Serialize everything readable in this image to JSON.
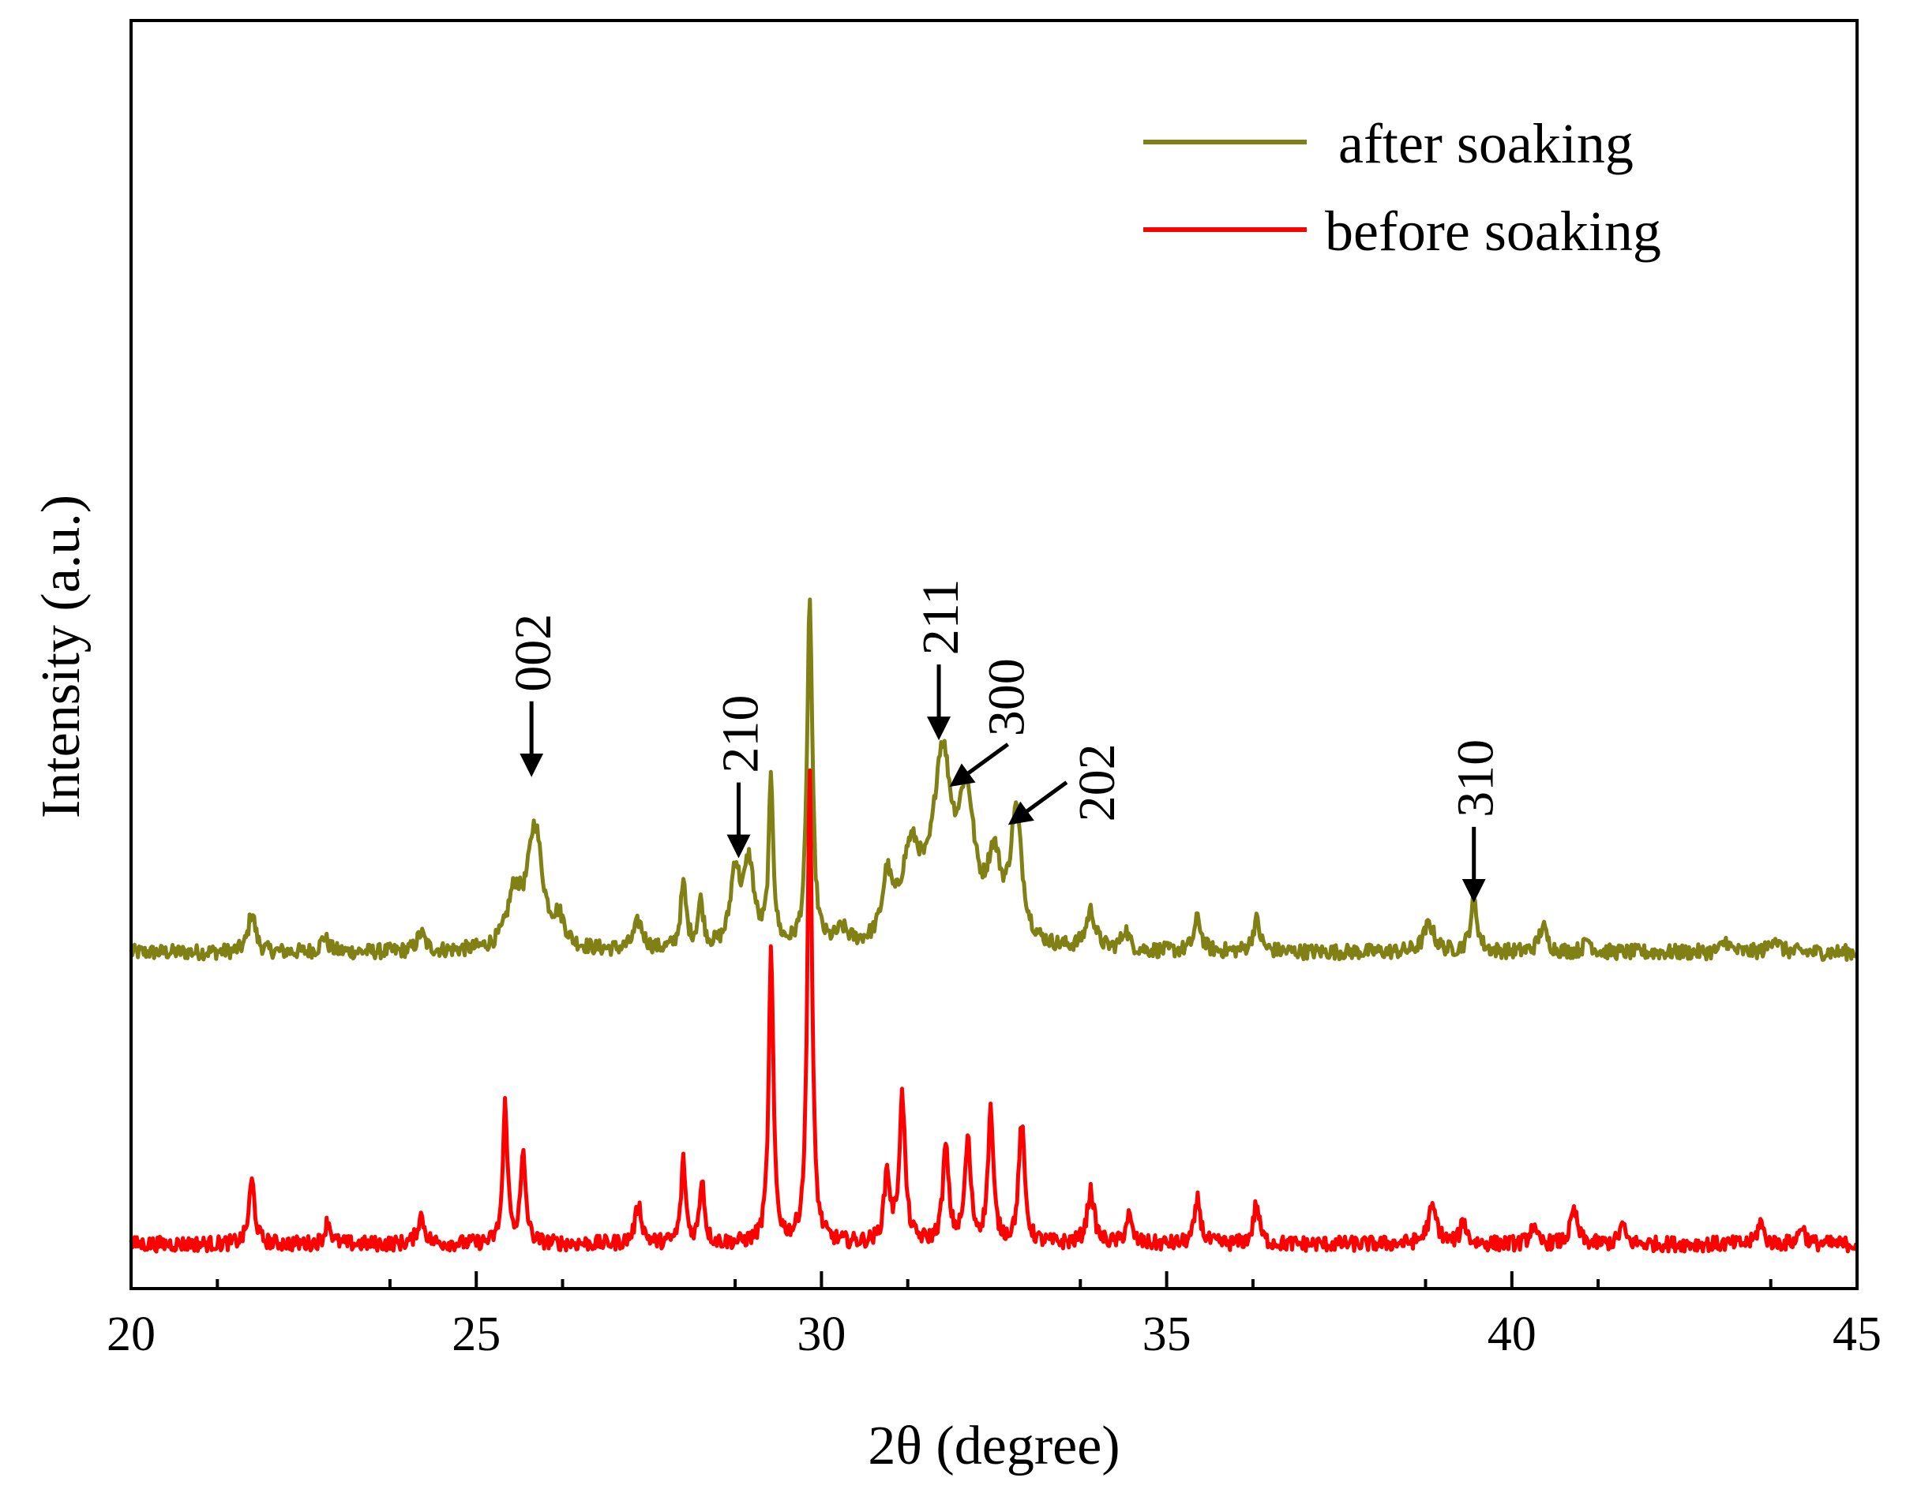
{
  "chart_data": {
    "type": "line",
    "title": "",
    "xlabel": "2θ (degree)",
    "ylabel": "Intensity (a.u.)",
    "xlim": [
      20,
      45
    ],
    "ylim": [
      0,
      100
    ],
    "xticks": [
      20,
      25,
      30,
      35,
      40,
      45
    ],
    "xtick_labels": [
      "20",
      "25",
      "30",
      "35",
      "40",
      "45"
    ],
    "minor_xtick_step": 1.25,
    "yticks_shown": false,
    "legend_position": "top-right",
    "colors": {
      "after": "#808015",
      "before": "#ff0000",
      "axis": "#000000"
    },
    "series": [
      {
        "name": "after soaking",
        "color": "#808015",
        "baseline": 26.5,
        "noise": 0.6,
        "peaks": [
          {
            "x": 21.75,
            "h": 3.2,
            "w": 0.06
          },
          {
            "x": 22.8,
            "h": 1.2,
            "w": 0.06
          },
          {
            "x": 24.2,
            "h": 1.4,
            "w": 0.07
          },
          {
            "x": 25.55,
            "h": 4.0,
            "w": 0.12
          },
          {
            "x": 25.85,
            "h": 9.5,
            "w": 0.13
          },
          {
            "x": 26.2,
            "h": 2.0,
            "w": 0.1
          },
          {
            "x": 27.35,
            "h": 2.2,
            "w": 0.08
          },
          {
            "x": 28.0,
            "h": 5.0,
            "w": 0.05
          },
          {
            "x": 28.25,
            "h": 3.6,
            "w": 0.05
          },
          {
            "x": 28.75,
            "h": 6.0,
            "w": 0.08
          },
          {
            "x": 28.95,
            "h": 6.5,
            "w": 0.09
          },
          {
            "x": 29.27,
            "h": 13.0,
            "w": 0.04
          },
          {
            "x": 29.83,
            "h": 27.5,
            "w": 0.045
          },
          {
            "x": 30.3,
            "h": 1.2,
            "w": 0.1
          },
          {
            "x": 30.95,
            "h": 4.5,
            "w": 0.08
          },
          {
            "x": 31.3,
            "h": 7.0,
            "w": 0.18
          },
          {
            "x": 31.75,
            "h": 14.0,
            "w": 0.16
          },
          {
            "x": 32.1,
            "h": 10.5,
            "w": 0.14
          },
          {
            "x": 32.5,
            "h": 6.0,
            "w": 0.12
          },
          {
            "x": 32.82,
            "h": 10.0,
            "w": 0.1
          },
          {
            "x": 33.9,
            "h": 3.0,
            "w": 0.08
          },
          {
            "x": 34.4,
            "h": 1.6,
            "w": 0.06
          },
          {
            "x": 35.45,
            "h": 2.6,
            "w": 0.06
          },
          {
            "x": 36.3,
            "h": 2.5,
            "w": 0.06
          },
          {
            "x": 38.8,
            "h": 2.2,
            "w": 0.09
          },
          {
            "x": 39.45,
            "h": 4.0,
            "w": 0.06
          },
          {
            "x": 40.45,
            "h": 2.0,
            "w": 0.07
          },
          {
            "x": 41.1,
            "h": 1.0,
            "w": 0.06
          },
          {
            "x": 43.1,
            "h": 0.9,
            "w": 0.06
          },
          {
            "x": 43.8,
            "h": 1.2,
            "w": 0.07
          }
        ]
      },
      {
        "name": "before soaking",
        "color": "#ff0000",
        "baseline": 3.5,
        "noise": 0.6,
        "peaks": [
          {
            "x": 21.75,
            "h": 5.0,
            "w": 0.05
          },
          {
            "x": 22.85,
            "h": 1.8,
            "w": 0.05
          },
          {
            "x": 24.2,
            "h": 2.2,
            "w": 0.06
          },
          {
            "x": 25.42,
            "h": 11.0,
            "w": 0.04
          },
          {
            "x": 25.68,
            "h": 6.8,
            "w": 0.045
          },
          {
            "x": 27.35,
            "h": 3.0,
            "w": 0.06
          },
          {
            "x": 28.0,
            "h": 6.5,
            "w": 0.04
          },
          {
            "x": 28.27,
            "h": 5.2,
            "w": 0.04
          },
          {
            "x": 29.27,
            "h": 23.0,
            "w": 0.04
          },
          {
            "x": 29.83,
            "h": 37.5,
            "w": 0.04
          },
          {
            "x": 30.95,
            "h": 5.5,
            "w": 0.05
          },
          {
            "x": 31.17,
            "h": 11.5,
            "w": 0.05
          },
          {
            "x": 31.8,
            "h": 7.5,
            "w": 0.05
          },
          {
            "x": 32.12,
            "h": 8.0,
            "w": 0.05
          },
          {
            "x": 32.45,
            "h": 10.5,
            "w": 0.045
          },
          {
            "x": 32.9,
            "h": 9.5,
            "w": 0.05
          },
          {
            "x": 33.9,
            "h": 4.2,
            "w": 0.06
          },
          {
            "x": 34.45,
            "h": 2.2,
            "w": 0.05
          },
          {
            "x": 35.45,
            "h": 3.5,
            "w": 0.05
          },
          {
            "x": 36.3,
            "h": 3.2,
            "w": 0.05
          },
          {
            "x": 38.85,
            "h": 2.8,
            "w": 0.08
          },
          {
            "x": 39.3,
            "h": 1.8,
            "w": 0.05
          },
          {
            "x": 40.3,
            "h": 1.4,
            "w": 0.05
          },
          {
            "x": 40.9,
            "h": 2.6,
            "w": 0.06
          },
          {
            "x": 41.6,
            "h": 1.5,
            "w": 0.05
          },
          {
            "x": 43.6,
            "h": 1.8,
            "w": 0.05
          },
          {
            "x": 44.2,
            "h": 1.5,
            "w": 0.05
          }
        ]
      }
    ],
    "annotations": [
      {
        "label": "002",
        "x": 25.8,
        "y": 40.4
      },
      {
        "label": "210",
        "x": 28.8,
        "y": 34.0
      },
      {
        "label": "211",
        "x": 31.7,
        "y": 43.3
      },
      {
        "label": "300",
        "x": 31.9,
        "y": 39.5
      },
      {
        "label": "202",
        "x": 32.75,
        "y": 36.5
      },
      {
        "label": "310",
        "x": 39.45,
        "y": 30.5
      }
    ]
  }
}
